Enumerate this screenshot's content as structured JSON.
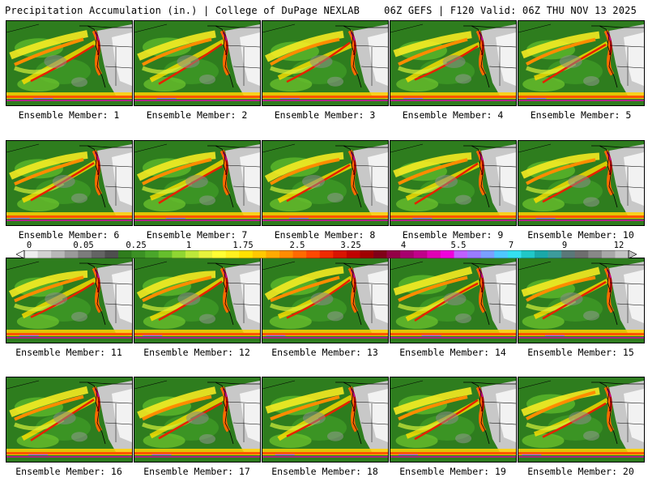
{
  "header": {
    "title_left": "Precipitation Accumulation (in.) | College of DuPage NEXLAB",
    "title_right": "06Z GEFS | F120 Valid: 06Z THU NOV 13 2025"
  },
  "colorbar": {
    "tick_labels": [
      "0",
      "0.05",
      "0.25",
      "1",
      "1.75",
      "2.5",
      "3.25",
      "4",
      "5.5",
      "7",
      "9",
      "12"
    ],
    "colors": [
      "#eeeeee",
      "#d2d2d2",
      "#b8b8b8",
      "#9a9a9a",
      "#7c7c7c",
      "#646464",
      "#4e4e4e",
      "#2f7d1d",
      "#3b9124",
      "#4aa62a",
      "#66be2c",
      "#8fd632",
      "#bde83a",
      "#e6f23c",
      "#ffff34",
      "#fff01f",
      "#ffe100",
      "#ffc800",
      "#ffaa00",
      "#ff8c00",
      "#ff6a00",
      "#ff4800",
      "#f02a00",
      "#d91400",
      "#c00000",
      "#a00000",
      "#800018",
      "#940046",
      "#a8006e",
      "#c0008a",
      "#e000b4",
      "#f000dc",
      "#c060ff",
      "#9a7cff",
      "#7aa0ff",
      "#4ec8ff",
      "#34e0f0",
      "#20c8c8",
      "#1aa8a8",
      "#3c9c9c",
      "#5a7878",
      "#6e6e6e",
      "#888888",
      "#a8a8a8",
      "#c4c4c4"
    ]
  },
  "members": [
    {
      "label": "Ensemble Member: 1"
    },
    {
      "label": "Ensemble Member: 2"
    },
    {
      "label": "Ensemble Member: 3"
    },
    {
      "label": "Ensemble Member: 4"
    },
    {
      "label": "Ensemble Member: 5"
    },
    {
      "label": "Ensemble Member: 6"
    },
    {
      "label": "Ensemble Member: 7"
    },
    {
      "label": "Ensemble Member: 8"
    },
    {
      "label": "Ensemble Member: 9"
    },
    {
      "label": "Ensemble Member: 10"
    },
    {
      "label": "Ensemble Member: 11"
    },
    {
      "label": "Ensemble Member: 12"
    },
    {
      "label": "Ensemble Member: 13"
    },
    {
      "label": "Ensemble Member: 14"
    },
    {
      "label": "Ensemble Member: 15"
    },
    {
      "label": "Ensemble Member: 16"
    },
    {
      "label": "Ensemble Member: 17"
    },
    {
      "label": "Ensemble Member: 18"
    },
    {
      "label": "Ensemble Member: 19"
    },
    {
      "label": "Ensemble Member: 20"
    }
  ]
}
